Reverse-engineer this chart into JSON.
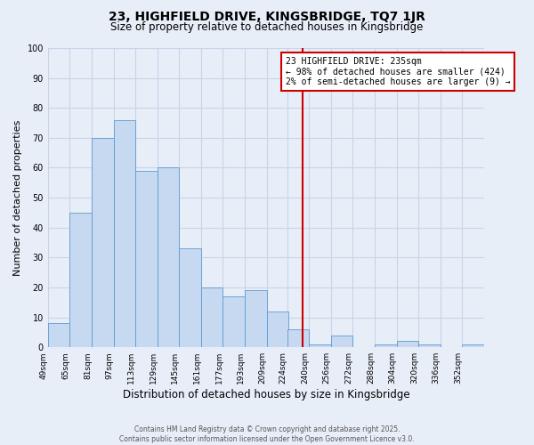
{
  "title": "23, HIGHFIELD DRIVE, KINGSBRIDGE, TQ7 1JR",
  "subtitle": "Size of property relative to detached houses in Kingsbridge",
  "xlabel": "Distribution of detached houses by size in Kingsbridge",
  "ylabel": "Number of detached properties",
  "bin_edges": [
    49,
    65,
    81,
    97,
    113,
    129,
    145,
    161,
    177,
    193,
    209,
    224,
    240,
    256,
    272,
    288,
    304,
    320,
    336,
    352,
    368
  ],
  "bar_heights": [
    8,
    45,
    70,
    76,
    59,
    60,
    33,
    20,
    17,
    19,
    12,
    6,
    1,
    4,
    0,
    1,
    2,
    1,
    0,
    1
  ],
  "bin_width": 16,
  "bar_color": "#c6d9f0",
  "bar_edge_color": "#5b9bd5",
  "vline_x": 235,
  "vline_color": "#cc0000",
  "ylim": [
    0,
    100
  ],
  "yticks": [
    0,
    10,
    20,
    30,
    40,
    50,
    60,
    70,
    80,
    90,
    100
  ],
  "annotation_title": "23 HIGHFIELD DRIVE: 235sqm",
  "annotation_line1": "← 98% of detached houses are smaller (424)",
  "annotation_line2": "2% of semi-detached houses are larger (9) →",
  "annotation_box_facecolor": "#ffffff",
  "annotation_box_edgecolor": "#cc0000",
  "footer_line1": "Contains HM Land Registry data © Crown copyright and database right 2025.",
  "footer_line2": "Contains public sector information licensed under the Open Government Licence v3.0.",
  "bg_color": "#e8eef8",
  "grid_color": "#c8d4e8",
  "title_fontsize": 10,
  "subtitle_fontsize": 8.5,
  "axis_label_fontsize": 8,
  "tick_label_fontsize": 6.5,
  "annotation_fontsize": 7
}
